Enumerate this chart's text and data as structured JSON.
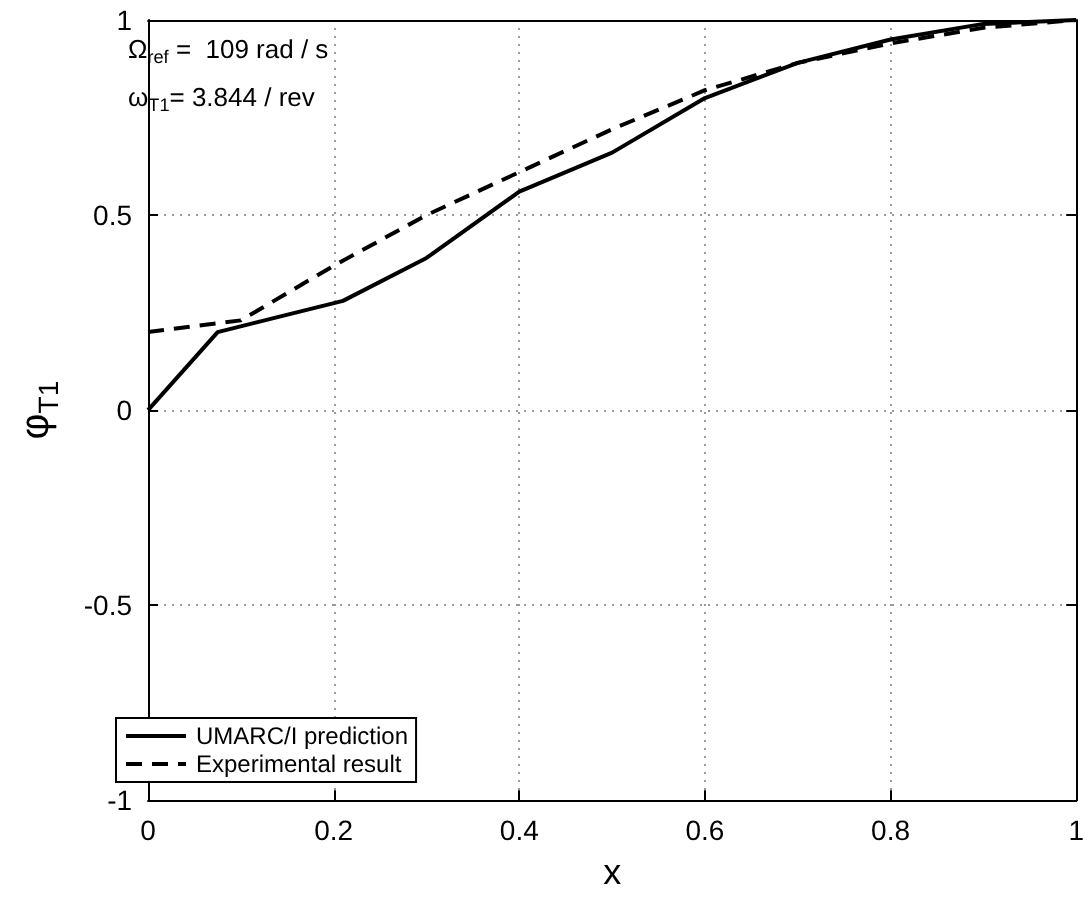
{
  "chart_data": {
    "type": "line",
    "xlabel": "x",
    "ylabel": "φ$_{T1}$",
    "annotations": [
      "Ω$_{ref}$ =  109 rad / s",
      "ω$_{T1}$= 3.844 / rev"
    ],
    "series": [
      {
        "name": "UMARC/I prediction",
        "color": "#000000",
        "line_style": "solid",
        "x": [
          0,
          0.075,
          0.21,
          0.3,
          0.4,
          0.5,
          0.6,
          0.7,
          0.8,
          0.9,
          1
        ],
        "values": [
          0,
          0.2,
          0.28,
          0.39,
          0.56,
          0.66,
          0.8,
          0.89,
          0.95,
          0.99,
          1
        ]
      },
      {
        "name": "Experimental result",
        "color": "#000000",
        "line_style": "dashed",
        "x": [
          0,
          0.1,
          0.2,
          0.3,
          0.4,
          0.5,
          0.6,
          0.7,
          0.8,
          0.9,
          1
        ],
        "values": [
          0.2,
          0.23,
          0.37,
          0.5,
          0.61,
          0.72,
          0.82,
          0.89,
          0.94,
          0.98,
          1
        ]
      }
    ],
    "xlim": [
      0,
      1
    ],
    "xticks": [
      0,
      0.2,
      0.4,
      0.6,
      0.8,
      1
    ],
    "ylim": [
      -1,
      1
    ],
    "yticks": [
      -1,
      -0.5,
      0,
      0.5,
      1
    ],
    "grid": true,
    "legend": "bottom left",
    "marker": "none"
  }
}
